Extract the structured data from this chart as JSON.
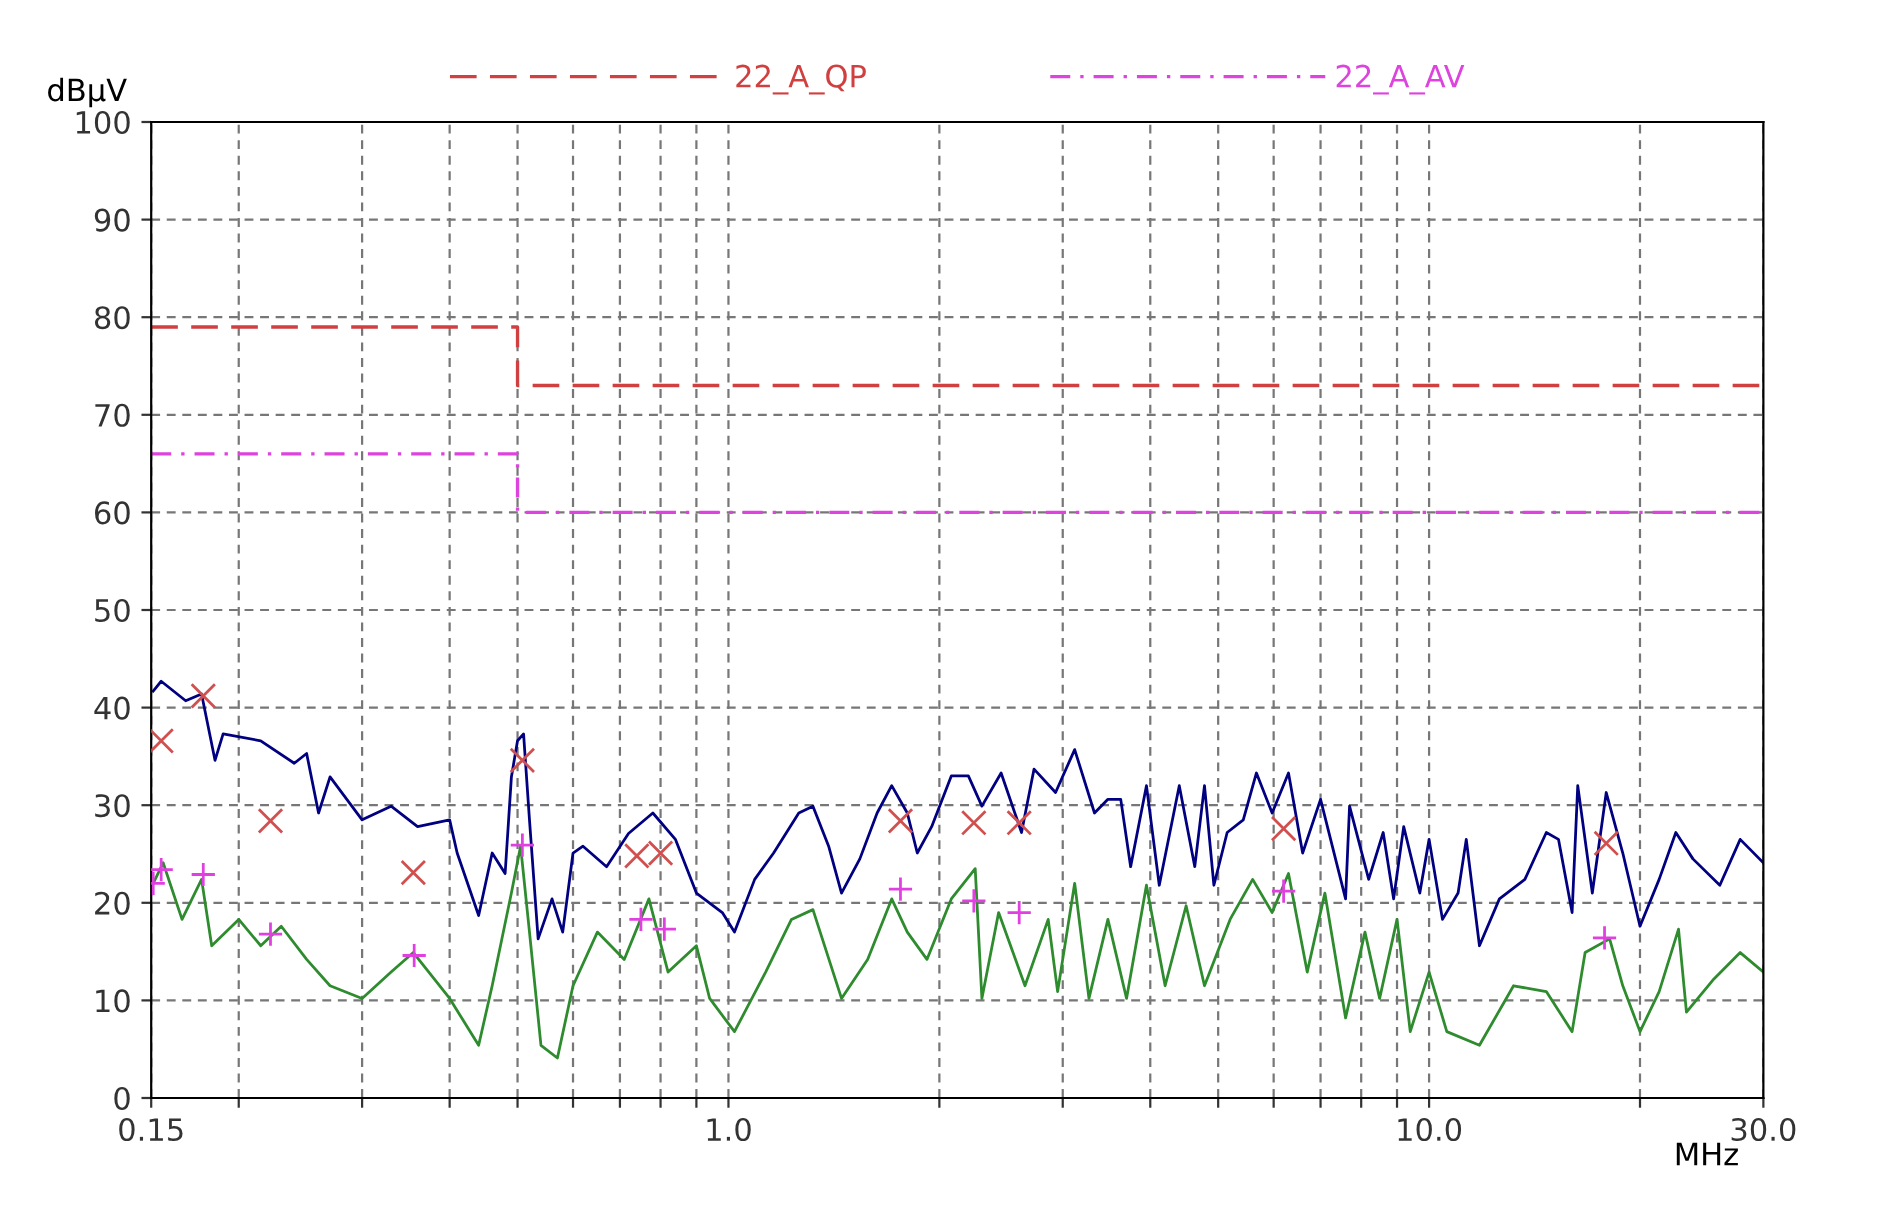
{
  "chart_data": {
    "type": "line",
    "xlabel": "MHz",
    "ylabel": "dBµV",
    "log": "x",
    "xlim": [
      0.15,
      30
    ],
    "ylim": [
      0,
      100
    ],
    "xticks": [
      {
        "value": 0.15,
        "label": "0.15"
      },
      {
        "value": 0.2,
        "label": null
      },
      {
        "value": 0.3,
        "label": null
      },
      {
        "value": 0.4,
        "label": null
      },
      {
        "value": 0.5,
        "label": null
      },
      {
        "value": 0.6,
        "label": null
      },
      {
        "value": 0.7,
        "label": null
      },
      {
        "value": 0.8,
        "label": null
      },
      {
        "value": 0.9,
        "label": null
      },
      {
        "value": 1,
        "label": "1.0"
      },
      {
        "value": 2,
        "label": null
      },
      {
        "value": 3,
        "label": null
      },
      {
        "value": 4,
        "label": null
      },
      {
        "value": 5,
        "label": null
      },
      {
        "value": 6,
        "label": null
      },
      {
        "value": 7,
        "label": null
      },
      {
        "value": 8,
        "label": null
      },
      {
        "value": 9,
        "label": null
      },
      {
        "value": 10,
        "label": "10.0"
      },
      {
        "value": 20,
        "label": null
      },
      {
        "value": 30,
        "label": "30.0"
      }
    ],
    "yticks": [
      0,
      10,
      20,
      30,
      40,
      50,
      60,
      70,
      80,
      90,
      100
    ],
    "grid": true,
    "legend": "top",
    "series": [
      {
        "name": "22_A_QP",
        "type": "step",
        "color": "#d04040",
        "line_style": "dashed",
        "x": [
          0.15,
          0.5,
          30
        ],
        "values": [
          79,
          73,
          73
        ]
      },
      {
        "name": "22_A_AV",
        "type": "step",
        "color": "#dd44dd",
        "line_style": "dashdot",
        "x": [
          0.15,
          0.5,
          30
        ],
        "values": [
          66,
          60,
          60
        ]
      },
      {
        "color": "#000080",
        "line_style": "solid",
        "x": [
          0.151,
          0.155,
          0.168,
          0.177,
          0.185,
          0.19,
          0.215,
          0.24,
          0.25,
          0.26,
          0.27,
          0.3,
          0.33,
          0.36,
          0.4,
          0.41,
          0.44,
          0.46,
          0.48,
          0.49,
          0.5,
          0.51,
          0.52,
          0.535,
          0.56,
          0.58,
          0.6,
          0.62,
          0.67,
          0.72,
          0.78,
          0.84,
          0.9,
          0.98,
          1.02,
          1.09,
          1.16,
          1.26,
          1.32,
          1.39,
          1.45,
          1.54,
          1.63,
          1.71,
          1.8,
          1.86,
          1.95,
          2.08,
          2.2,
          2.3,
          2.45,
          2.62,
          2.73,
          2.93,
          3.12,
          3.33,
          3.48,
          3.63,
          3.75,
          3.95,
          4.12,
          4.4,
          4.63,
          4.78,
          4.93,
          5.15,
          5.43,
          5.67,
          5.97,
          6.3,
          6.6,
          7.0,
          7.6,
          7.7,
          8.2,
          8.6,
          8.9,
          9.2,
          9.7,
          10,
          10.45,
          11,
          11.3,
          11.8,
          12.6,
          13.7,
          14.7,
          15.3,
          16.0,
          16.3,
          17.1,
          17.9,
          18.9,
          20,
          21.3,
          22.5,
          23.8,
          26,
          27.8,
          30
        ],
        "values": [
          41.7,
          42.7,
          40.7,
          41.4,
          34.6,
          37.3,
          36.6,
          34.3,
          35.3,
          29.2,
          32.9,
          28.5,
          29.9,
          27.8,
          28.5,
          25.1,
          18.7,
          25.1,
          23.0,
          32.9,
          36.6,
          37.3,
          28.5,
          16.3,
          20.4,
          17.0,
          25.1,
          25.8,
          23.7,
          27.1,
          29.2,
          26.5,
          21.0,
          19.0,
          17.0,
          22.4,
          25.1,
          29.2,
          29.9,
          25.8,
          21.0,
          24.5,
          29.2,
          32.0,
          29.2,
          25.1,
          27.8,
          33.0,
          33.0,
          29.9,
          33.3,
          27.2,
          33.7,
          31.3,
          35.7,
          29.2,
          30.6,
          30.6,
          23.7,
          32.0,
          21.8,
          32.0,
          23.7,
          32.0,
          21.8,
          27.2,
          28.5,
          33.3,
          29.2,
          33.3,
          25.1,
          30.6,
          20.4,
          29.9,
          22.4,
          27.2,
          20.4,
          27.8,
          21.0,
          26.5,
          18.3,
          21.0,
          26.5,
          15.6,
          20.4,
          22.4,
          27.2,
          26.5,
          19.0,
          32.0,
          21.0,
          31.3,
          25.1,
          17.6,
          22.4,
          27.2,
          24.5,
          21.8,
          26.5,
          24.1
        ]
      },
      {
        "color": "#2e8b2e",
        "line_style": "solid",
        "x": [
          0.151,
          0.156,
          0.166,
          0.177,
          0.183,
          0.2,
          0.215,
          0.23,
          0.25,
          0.27,
          0.3,
          0.33,
          0.355,
          0.4,
          0.44,
          0.46,
          0.49,
          0.505,
          0.52,
          0.54,
          0.57,
          0.6,
          0.65,
          0.71,
          0.77,
          0.82,
          0.9,
          0.94,
          1.02,
          1.13,
          1.23,
          1.32,
          1.45,
          1.58,
          1.71,
          1.8,
          1.92,
          2.08,
          2.25,
          2.3,
          2.43,
          2.65,
          2.86,
          2.95,
          3.12,
          3.27,
          3.48,
          3.7,
          3.95,
          4.2,
          4.5,
          4.78,
          5.2,
          5.6,
          5.97,
          6.3,
          6.7,
          7.1,
          7.6,
          8.1,
          8.5,
          9.0,
          9.4,
          10,
          10.6,
          11.8,
          13.2,
          14.7,
          16,
          16.7,
          18.1,
          18.9,
          20,
          21.3,
          22.7,
          23.3,
          25.5,
          27.8,
          30
        ],
        "values": [
          22.0,
          24.1,
          18.3,
          22.4,
          15.6,
          18.3,
          15.6,
          17.6,
          14.2,
          11.5,
          10.2,
          12.9,
          14.9,
          10.2,
          5.4,
          11.5,
          21.0,
          25.8,
          17.0,
          5.4,
          4.1,
          11.5,
          17.0,
          14.2,
          20.4,
          12.9,
          15.6,
          10.2,
          6.8,
          12.9,
          18.3,
          19.3,
          10.2,
          14.2,
          20.4,
          17.0,
          14.2,
          20.4,
          23.5,
          10.2,
          19.0,
          11.5,
          18.3,
          10.9,
          22.0,
          10.2,
          18.3,
          10.2,
          21.8,
          11.5,
          19.7,
          11.5,
          18.3,
          22.4,
          19.0,
          23.0,
          12.9,
          21.0,
          8.2,
          17.0,
          10.2,
          18.3,
          6.8,
          12.9,
          6.8,
          5.4,
          11.5,
          10.9,
          6.8,
          14.9,
          16.3,
          11.5,
          6.8,
          10.9,
          17.3,
          8.8,
          12.2,
          14.9,
          12.9
        ]
      },
      {
        "type": "scatter",
        "color": "#d05050",
        "marker": "cross",
        "x": [
          0.155,
          0.178,
          0.222,
          0.355,
          0.508,
          0.74,
          0.8,
          1.76,
          2.24,
          2.6,
          6.2,
          17.9
        ],
        "values": [
          36.6,
          41.2,
          28.4,
          23.1,
          34.6,
          24.8,
          25.1,
          28.4,
          28.2,
          28.2,
          27.6,
          26.1
        ]
      },
      {
        "type": "scatter",
        "color": "#e040e0",
        "marker": "plus",
        "x": [
          0.151,
          0.155,
          0.178,
          0.222,
          0.356,
          0.508,
          0.75,
          0.81,
          1.76,
          2.24,
          2.6,
          6.2,
          17.8
        ],
        "values": [
          22.0,
          23.4,
          22.9,
          16.8,
          14.6,
          25.9,
          18.3,
          17.3,
          21.4,
          20.2,
          19.0,
          21.2,
          16.4
        ]
      }
    ]
  }
}
